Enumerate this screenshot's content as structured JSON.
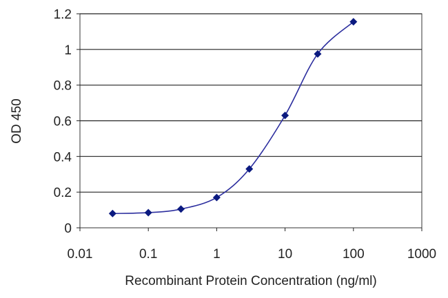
{
  "chart_data": {
    "type": "scatter",
    "title": "",
    "xlabel": "Recombinant Protein Concentration (ng/ml)",
    "ylabel": "OD 450",
    "x_scale": "log",
    "xlim": [
      0.01,
      1000
    ],
    "ylim": [
      0,
      1.2
    ],
    "x_ticks": [
      0.01,
      0.1,
      1,
      10,
      100,
      1000
    ],
    "x_tick_labels": [
      "0.01",
      "0.1",
      "1",
      "10",
      "100",
      "1000"
    ],
    "y_ticks": [
      0,
      0.2,
      0.4,
      0.6,
      0.8,
      1,
      1.2
    ],
    "y_tick_labels": [
      "0",
      "0.2",
      "0.4",
      "0.6",
      "0.8",
      "1",
      "1.2"
    ],
    "grid": "horizontal",
    "legend": "none",
    "curve": "smooth fitted line",
    "series": [
      {
        "x": [
          0.03,
          0.1,
          0.3,
          1,
          3,
          10,
          30,
          100
        ],
        "y": [
          0.08,
          0.085,
          0.105,
          0.17,
          0.33,
          0.63,
          0.975,
          1.155
        ]
      }
    ],
    "colors": {
      "line": "#2b2d9e",
      "marker": "#0b1a80",
      "grid": "#222222",
      "axis": "#222222"
    }
  }
}
